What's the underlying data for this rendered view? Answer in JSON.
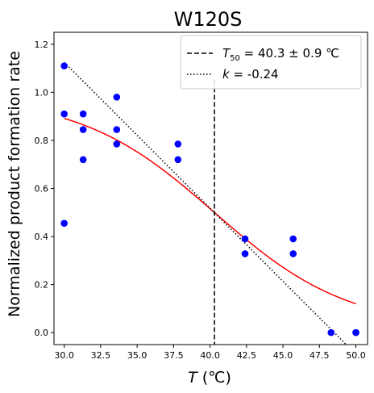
{
  "chart_data": {
    "type": "scatter",
    "title": "W120S",
    "xlabel_symbol": "T",
    "xlabel_unit": " (℃)",
    "ylabel": "Normalized product formation rate",
    "xlim": [
      29.3,
      50.8
    ],
    "ylim": [
      -0.05,
      1.25
    ],
    "xticks": [
      "30.0",
      "32.5",
      "35.0",
      "37.5",
      "40.0",
      "42.5",
      "45.0",
      "47.5",
      "50.0"
    ],
    "xtick_values": [
      30.0,
      32.5,
      35.0,
      37.5,
      40.0,
      42.5,
      45.0,
      47.5,
      50.0
    ],
    "yticks": [
      "0.0",
      "0.2",
      "0.4",
      "0.6",
      "0.8",
      "1.0",
      "1.2"
    ],
    "ytick_values": [
      0.0,
      0.2,
      0.4,
      0.6,
      0.8,
      1.0,
      1.2
    ],
    "grid": false,
    "legend_position": "top-right",
    "points": {
      "color": "#0000ff",
      "x": [
        30.0,
        30.0,
        30.0,
        31.3,
        31.3,
        31.3,
        33.6,
        33.6,
        33.6,
        37.8,
        37.8,
        42.4,
        42.4,
        45.7,
        45.7,
        48.3,
        50.0,
        50.0
      ],
      "y": [
        1.11,
        0.91,
        0.455,
        0.91,
        0.845,
        0.72,
        0.98,
        0.845,
        0.785,
        0.785,
        0.72,
        0.39,
        0.328,
        0.39,
        0.328,
        0.0,
        0.0,
        0.0
      ]
    },
    "fit_curve": {
      "color": "#ff0000",
      "T50": 40.3,
      "top": 0.985,
      "bottom": 0.015,
      "width": 4.6
    },
    "threshold_line": {
      "label_symbol": "T",
      "label_subscript": "50",
      "label_rest": " = 40.3 ± 0.9 ℃",
      "x": 40.3,
      "color": "#000000"
    },
    "linear_fit": {
      "label_symbol": "k",
      "label_rest": " = -0.24",
      "color": "#000000",
      "x_start": 30.0,
      "y_start": 1.125,
      "x_end": 49.5,
      "y_end": -0.06
    }
  }
}
